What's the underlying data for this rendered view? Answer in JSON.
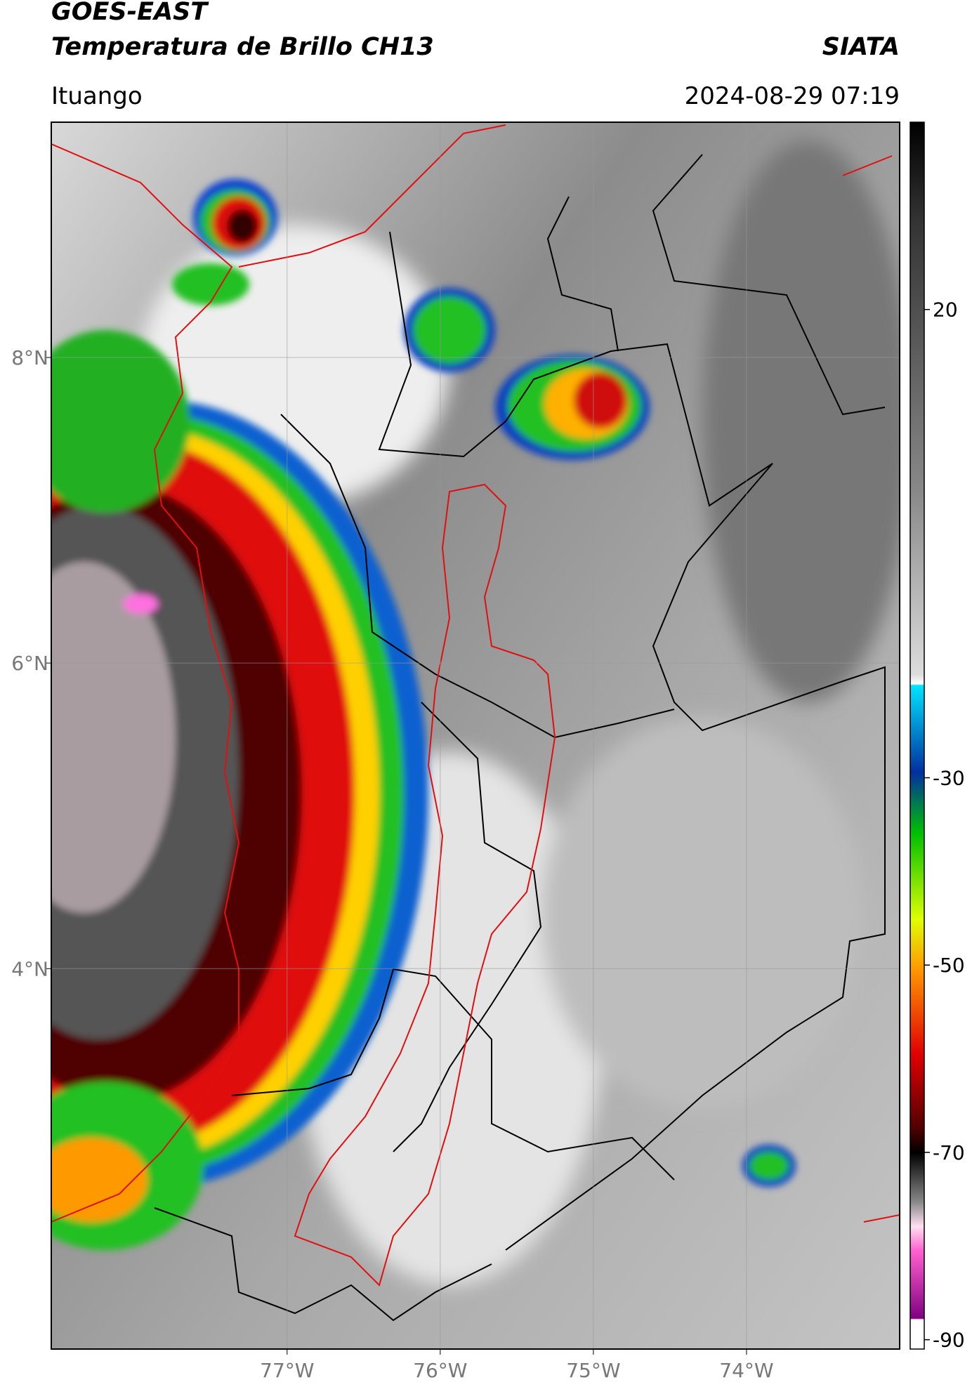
{
  "header": {
    "title": "GOES-EAST",
    "subtitle": "Temperatura de Brillo CH13",
    "source": "SIATA",
    "place": "Ituango",
    "datetime": "2024-08-29 07:19"
  },
  "map": {
    "xlim": [
      -78.54,
      -73.0
    ],
    "ylim": [
      1.51,
      9.54
    ],
    "xticks": [
      {
        "value": -77,
        "label": "77°W"
      },
      {
        "value": -76,
        "label": "76°W"
      },
      {
        "value": -75,
        "label": "75°W"
      },
      {
        "value": -74,
        "label": "74°W"
      }
    ],
    "yticks": [
      {
        "value": 8,
        "label": "8°N"
      },
      {
        "value": 6,
        "label": "6°N"
      },
      {
        "value": 4,
        "label": "4°N"
      }
    ],
    "grid": true
  },
  "colorbar": {
    "lim": [
      -91,
      40
    ],
    "ticks": [
      -90,
      -70,
      -50,
      -30,
      20
    ]
  }
}
